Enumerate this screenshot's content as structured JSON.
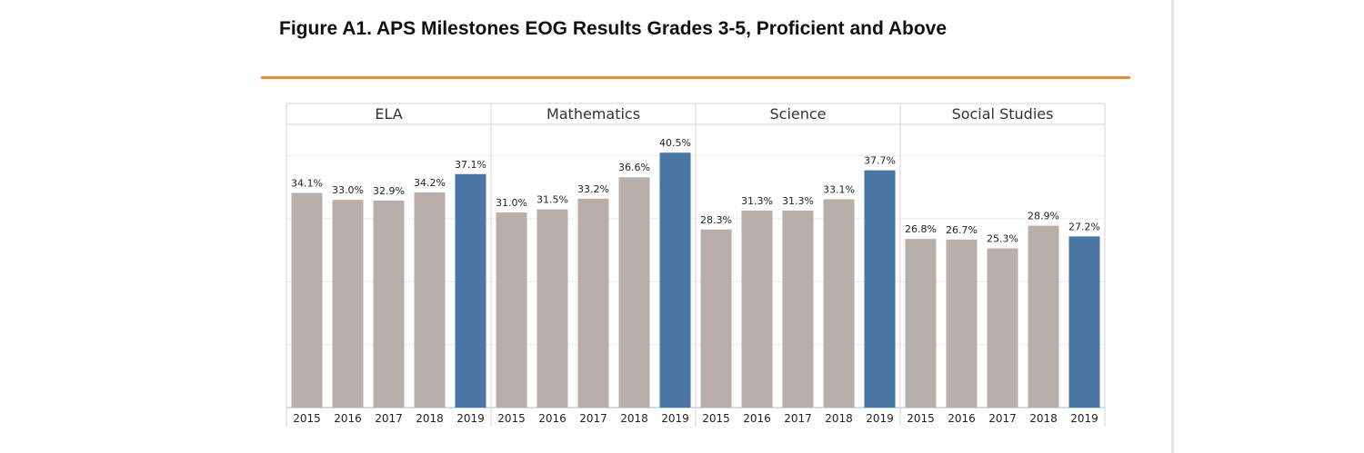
{
  "figure": {
    "title": "Figure A1. APS Milestones EOG Results Grades 3-5, Proficient and Above"
  },
  "colors": {
    "rule": "#f08b2b",
    "bar_default": "#b9afaa",
    "bar_highlight": "#4a76a5",
    "grid": "#ececec",
    "border": "#d4d4d4"
  },
  "chart_data": {
    "type": "bar",
    "title": "Figure A1. APS Milestones EOG Results Grades 3-5, Proficient and Above",
    "xlabel": "",
    "ylabel": "",
    "ylim": [
      0,
      45
    ],
    "grid": true,
    "categories": [
      "2015",
      "2016",
      "2017",
      "2018",
      "2019"
    ],
    "highlight_category": "2019",
    "panels": [
      {
        "name": "ELA",
        "values": [
          34.1,
          33.0,
          32.9,
          34.2,
          37.1
        ],
        "labels": [
          "34.1%",
          "33.0%",
          "32.9%",
          "34.2%",
          "37.1%"
        ]
      },
      {
        "name": "Mathematics",
        "values": [
          31.0,
          31.5,
          33.2,
          36.6,
          40.5
        ],
        "labels": [
          "31.0%",
          "31.5%",
          "33.2%",
          "36.6%",
          "40.5%"
        ]
      },
      {
        "name": "Science",
        "values": [
          28.3,
          31.3,
          31.3,
          33.1,
          37.7
        ],
        "labels": [
          "28.3%",
          "31.3%",
          "31.3%",
          "33.1%",
          "37.7%"
        ]
      },
      {
        "name": "Social Studies",
        "values": [
          26.8,
          26.7,
          25.3,
          28.9,
          27.2
        ],
        "labels": [
          "26.8%",
          "26.7%",
          "25.3%",
          "28.9%",
          "27.2%"
        ]
      }
    ]
  }
}
